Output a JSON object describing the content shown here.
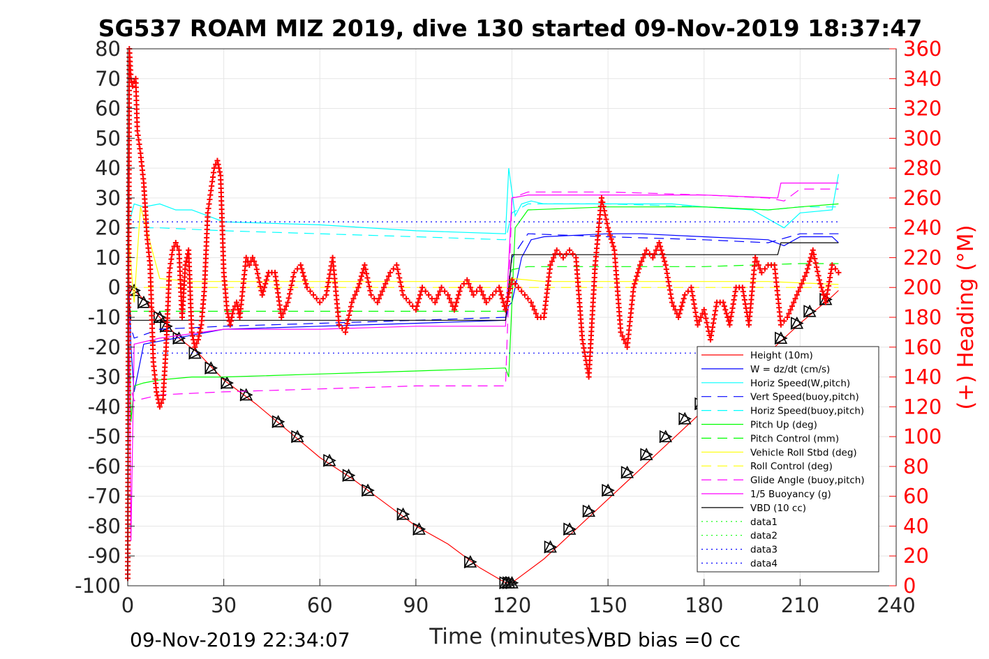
{
  "chart_data": {
    "type": "line",
    "title": "SG537 ROAM MIZ 2019, dive 130 started 09-Nov-2019 18:37:47",
    "xlabel": "Time (minutes)",
    "ylabel": "",
    "y2label": "(+) Heading (°M)",
    "xlim": [
      0,
      240
    ],
    "ylim": [
      -100,
      80
    ],
    "y2lim": [
      0,
      360
    ],
    "xticks": [
      "0",
      "30",
      "60",
      "90",
      "120",
      "150",
      "180",
      "210",
      "240"
    ],
    "yticks": [
      "80",
      "70",
      "60",
      "50",
      "40",
      "30",
      "20",
      "10",
      "0",
      "-10",
      "-20",
      "-30",
      "-40",
      "-50",
      "-60",
      "-70",
      "-80",
      "-90",
      "-100"
    ],
    "y2ticks": [
      "360",
      "340",
      "320",
      "300",
      "280",
      "260",
      "240",
      "220",
      "200",
      "180",
      "160",
      "140",
      "120",
      "100",
      "80",
      "60",
      "40",
      "20",
      "0"
    ],
    "grid": true,
    "legend_position": "lower-right",
    "footer_left": "09-Nov-2019 22:34:07",
    "footer_right": "VBD bias =0 cc",
    "colors": {
      "red": "#ff0000",
      "blue": "#0000ff",
      "cyan": "#00ffff",
      "green": "#00ff00",
      "yellow": "#ffff00",
      "magenta": "#ff00ff",
      "black": "#000000"
    },
    "legend": [
      {
        "label": "Height (10m)",
        "color": "#ff0000",
        "dash": "solid"
      },
      {
        "label": "W = dz/dt (cm/s)",
        "color": "#0000ff",
        "dash": "solid"
      },
      {
        "label": "Horiz Speed(W,pitch)",
        "color": "#00ffff",
        "dash": "solid"
      },
      {
        "label": "Vert Speed(buoy,pitch)",
        "color": "#0000ff",
        "dash": "dashed"
      },
      {
        "label": "Horiz Speed(buoy,pitch)",
        "color": "#00ffff",
        "dash": "dashed"
      },
      {
        "label": "Pitch Up (deg)",
        "color": "#00ff00",
        "dash": "solid"
      },
      {
        "label": "Pitch Control (mm)",
        "color": "#00ff00",
        "dash": "dashed"
      },
      {
        "label": "Vehicle Roll Stbd (deg)",
        "color": "#ffff00",
        "dash": "solid"
      },
      {
        "label": "Roll Control (deg)",
        "color": "#ffff00",
        "dash": "dashed"
      },
      {
        "label": "Glide Angle (buoy,pitch)",
        "color": "#ff00ff",
        "dash": "dashed"
      },
      {
        "label": "1/5 Buoyancy (g)",
        "color": "#ff00ff",
        "dash": "solid"
      },
      {
        "label": "VBD (10 cc)",
        "color": "#000000",
        "dash": "solid"
      },
      {
        "label": "data1",
        "color": "#00ff00",
        "dash": "dotted"
      },
      {
        "label": "data2",
        "color": "#00ff00",
        "dash": "dotted"
      },
      {
        "label": "data3",
        "color": "#0000ff",
        "dash": "dotted"
      },
      {
        "label": "data4",
        "color": "#0000ff",
        "dash": "dotted"
      }
    ],
    "series": [
      {
        "name": "Height (10m)",
        "axis": "left",
        "color": "#ff0000",
        "dash": "solid",
        "x": [
          0,
          2,
          6,
          10,
          16,
          22,
          30,
          40,
          50,
          60,
          70,
          80,
          90,
          100,
          110,
          118,
          120,
          130,
          140,
          150,
          160,
          170,
          180,
          190,
          200,
          210,
          220,
          222
        ],
        "y": [
          0,
          -1,
          -5,
          -10,
          -17,
          -22,
          -31,
          -39,
          -48,
          -57,
          -64,
          -72,
          -80,
          -86,
          -94,
          -99,
          -99,
          -91,
          -81,
          -71,
          -61,
          -51,
          -41,
          -32,
          -22,
          -12,
          -3,
          -1
        ]
      },
      {
        "name": "Dive markers",
        "axis": "left",
        "color": "#000000",
        "markers": "triangle",
        "x": [
          2,
          5,
          10,
          12,
          16,
          21,
          26,
          31,
          37,
          47,
          53,
          63,
          69,
          75,
          86,
          91,
          107,
          118,
          119,
          120,
          132,
          138,
          144,
          150,
          156,
          162,
          168,
          174,
          179,
          204,
          209,
          213,
          218
        ],
        "y": [
          -1,
          -5,
          -10,
          -13,
          -17,
          -22,
          -27,
          -32,
          -36,
          -45,
          -50,
          -58,
          -63,
          -68,
          -76,
          -81,
          -92,
          -99,
          -99,
          -99,
          -87,
          -81,
          -75,
          -68,
          -62,
          -56,
          -50,
          -44,
          -39,
          -17,
          -12,
          -8,
          -4
        ]
      },
      {
        "name": "W = dz/dt (cm/s)",
        "axis": "left",
        "color": "#0000ff",
        "dash": "solid",
        "x": [
          0,
          1,
          2,
          5,
          10,
          20,
          30,
          60,
          90,
          118,
          119,
          120,
          123,
          126,
          130,
          150,
          160,
          180,
          200,
          205,
          210,
          220,
          222
        ],
        "y": [
          15,
          -20,
          -35,
          -19,
          -18,
          -16,
          -14,
          -13,
          -12,
          -11,
          -6,
          -5,
          10,
          16,
          17,
          18,
          18,
          17,
          16,
          14,
          17,
          17,
          15
        ]
      },
      {
        "name": "Horiz Speed(W,pitch)",
        "axis": "left",
        "color": "#00ffff",
        "dash": "solid",
        "x": [
          0,
          2,
          5,
          10,
          15,
          20,
          30,
          60,
          90,
          118,
          119,
          121,
          123,
          126,
          130,
          150,
          170,
          180,
          195,
          205,
          210,
          220,
          222
        ],
        "y": [
          20,
          28,
          27,
          28,
          26,
          26,
          22,
          21,
          19,
          18,
          40,
          24,
          28,
          29,
          28,
          28,
          28,
          27,
          26,
          20,
          25,
          26,
          38
        ]
      },
      {
        "name": "Vert Speed(buoy,pitch)",
        "axis": "left",
        "color": "#0000ff",
        "dash": "dashed",
        "x": [
          0,
          2,
          10,
          30,
          60,
          90,
          118,
          120,
          125,
          150,
          180,
          200,
          210,
          222
        ],
        "y": [
          -10,
          -17,
          -14,
          -13,
          -12,
          -11,
          -10,
          10,
          18,
          17,
          16,
          15,
          18,
          18
        ]
      },
      {
        "name": "Horiz Speed(buoy,pitch)",
        "axis": "left",
        "color": "#00ffff",
        "dash": "dashed",
        "x": [
          0,
          2,
          10,
          30,
          60,
          90,
          118,
          120,
          125,
          150,
          180,
          200,
          210,
          222
        ],
        "y": [
          20,
          20,
          20,
          19,
          18,
          17,
          16,
          25,
          28,
          28,
          27,
          26,
          27,
          27
        ]
      },
      {
        "name": "Pitch Up (deg)",
        "axis": "left",
        "color": "#00ff00",
        "dash": "solid",
        "x": [
          0,
          1,
          2,
          5,
          10,
          20,
          30,
          60,
          90,
          118,
          119,
          121,
          125,
          150,
          180,
          200,
          210,
          222
        ],
        "y": [
          10,
          -45,
          -33,
          -32,
          -31,
          -30,
          -30,
          -29,
          -28,
          -27,
          -30,
          20,
          26,
          27,
          27,
          26,
          27,
          28
        ]
      },
      {
        "name": "Pitch Control (mm)",
        "axis": "left",
        "color": "#00ff00",
        "dash": "dashed",
        "x": [
          0,
          2,
          30,
          60,
          90,
          118,
          120,
          125,
          150,
          180,
          210,
          222
        ],
        "y": [
          -8,
          -8,
          -8,
          -8,
          -8,
          -8,
          6,
          7,
          7,
          7,
          8,
          8
        ]
      },
      {
        "name": "Vehicle Roll Stbd (deg)",
        "axis": "left",
        "color": "#ffff00",
        "dash": "solid",
        "x": [
          0,
          2,
          4,
          10,
          20,
          40,
          60,
          90,
          118,
          120,
          130,
          150,
          180,
          200,
          222
        ],
        "y": [
          20,
          -5,
          27,
          3,
          2,
          2,
          2,
          2,
          2,
          3,
          2,
          2,
          2,
          2,
          1
        ]
      },
      {
        "name": "Roll Control (deg)",
        "axis": "left",
        "color": "#ffff00",
        "dash": "dashed",
        "x": [
          0,
          2,
          30,
          60,
          90,
          118,
          120,
          150,
          180,
          210,
          222
        ],
        "y": [
          0,
          0,
          0,
          0,
          0,
          0,
          0,
          0,
          0,
          0,
          0
        ]
      },
      {
        "name": "Glide Angle (buoy,pitch)",
        "axis": "left",
        "color": "#ff00ff",
        "dash": "dashed",
        "x": [
          0,
          2,
          10,
          30,
          60,
          90,
          118,
          120,
          125,
          150,
          180,
          200,
          205,
          210,
          222
        ],
        "y": [
          -30,
          -38,
          -36,
          -35,
          -34,
          -33,
          -33,
          30,
          32,
          32,
          31,
          30,
          29,
          33,
          33
        ]
      },
      {
        "name": "1/5 Buoyancy (g)",
        "axis": "left",
        "color": "#ff00ff",
        "dash": "solid",
        "x": [
          0,
          1,
          2,
          10,
          30,
          60,
          90,
          118,
          120,
          125,
          150,
          180,
          203,
          204,
          222
        ],
        "y": [
          40,
          -85,
          -19,
          -17,
          -14,
          -14,
          -13,
          -13,
          30,
          31,
          31,
          31,
          30,
          35,
          35
        ]
      },
      {
        "name": "VBD (10 cc)",
        "axis": "left",
        "color": "#000000",
        "dash": "solid",
        "x": [
          0,
          1,
          2,
          30,
          60,
          90,
          118,
          120,
          150,
          180,
          203,
          204,
          222
        ],
        "y": [
          0,
          -11,
          -11,
          -11,
          -11,
          -11,
          -11,
          11,
          11,
          11,
          11,
          15,
          15
        ]
      },
      {
        "name": "data3",
        "axis": "left",
        "color": "#0000ff",
        "dash": "dotted",
        "x": [
          0,
          222
        ],
        "y": [
          22,
          22
        ]
      },
      {
        "name": "data4",
        "axis": "left",
        "color": "#0000ff",
        "dash": "dotted",
        "x": [
          0,
          222
        ],
        "y": [
          -22,
          -22
        ]
      },
      {
        "name": "Heading",
        "axis": "right",
        "color": "#ff0000",
        "markers": "plus",
        "x": [
          0,
          0.5,
          1,
          1.5,
          2,
          2.5,
          3,
          4,
          5,
          6,
          7,
          8,
          9,
          10,
          11,
          12,
          13,
          14,
          15,
          16,
          17,
          18,
          19,
          20,
          21,
          22,
          23,
          24,
          25,
          26,
          27,
          28,
          29,
          30,
          31,
          32,
          33,
          34,
          35,
          36,
          37,
          38,
          39,
          40,
          42,
          44,
          46,
          48,
          50,
          52,
          54,
          56,
          58,
          60,
          62,
          64,
          66,
          68,
          70,
          72,
          74,
          76,
          78,
          80,
          82,
          84,
          86,
          88,
          90,
          92,
          94,
          96,
          98,
          100,
          102,
          104,
          106,
          108,
          110,
          112,
          114,
          116,
          118,
          120,
          122,
          124,
          126,
          128,
          130,
          132,
          134,
          136,
          138,
          140,
          142,
          144,
          146,
          148,
          150,
          152,
          154,
          156,
          158,
          160,
          162,
          164,
          166,
          168,
          170,
          172,
          174,
          176,
          178,
          180,
          182,
          184,
          186,
          188,
          190,
          192,
          194,
          196,
          198,
          200,
          202,
          204,
          206,
          208,
          210,
          212,
          214,
          216,
          218,
          220,
          222
        ],
        "y": [
          5,
          360,
          340,
          335,
          338,
          340,
          305,
          290,
          270,
          235,
          215,
          150,
          130,
          120,
          125,
          160,
          210,
          225,
          230,
          225,
          180,
          215,
          225,
          170,
          160,
          165,
          175,
          200,
          250,
          265,
          280,
          285,
          275,
          210,
          185,
          175,
          185,
          190,
          180,
          200,
          220,
          215,
          220,
          215,
          195,
          210,
          210,
          180,
          190,
          210,
          215,
          200,
          195,
          190,
          195,
          220,
          175,
          170,
          190,
          200,
          215,
          195,
          190,
          200,
          210,
          215,
          195,
          190,
          185,
          200,
          195,
          190,
          200,
          195,
          185,
          200,
          205,
          195,
          200,
          190,
          195,
          200,
          185,
          205,
          200,
          195,
          190,
          180,
          180,
          215,
          225,
          220,
          225,
          220,
          165,
          140,
          215,
          260,
          240,
          225,
          170,
          160,
          200,
          215,
          225,
          220,
          230,
          215,
          190,
          180,
          195,
          200,
          175,
          185,
          165,
          190,
          190,
          175,
          200,
          200,
          175,
          220,
          210,
          215,
          215,
          175,
          180,
          190,
          200,
          210,
          225,
          205,
          190,
          215,
          210
        ]
      }
    ]
  }
}
